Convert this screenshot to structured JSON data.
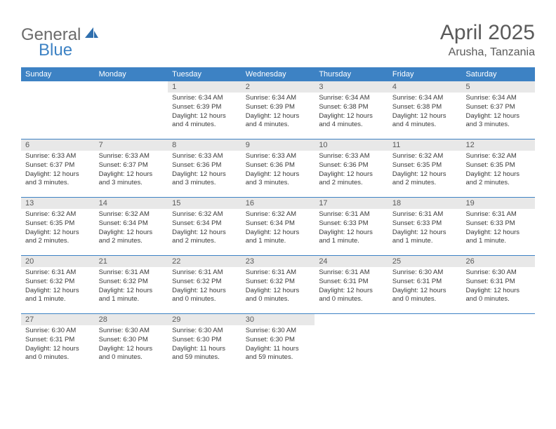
{
  "logo": {
    "general": "General",
    "blue": "Blue"
  },
  "title": "April 2025",
  "location": "Arusha, Tanzania",
  "colors": {
    "header_bg": "#3d82c4",
    "header_text": "#ffffff",
    "daynum_bg": "#e8e8e8",
    "daynum_text": "#5a5a5a",
    "body_text": "#3a3a3a",
    "divider": "#3d82c4",
    "title_text": "#5a5a5a",
    "logo_gray": "#6b6b6b",
    "logo_blue": "#3d82c4"
  },
  "weekdays": [
    "Sunday",
    "Monday",
    "Tuesday",
    "Wednesday",
    "Thursday",
    "Friday",
    "Saturday"
  ],
  "weeks": [
    [
      null,
      null,
      {
        "n": "1",
        "sr": "Sunrise: 6:34 AM",
        "ss": "Sunset: 6:39 PM",
        "dl": "Daylight: 12 hours and 4 minutes."
      },
      {
        "n": "2",
        "sr": "Sunrise: 6:34 AM",
        "ss": "Sunset: 6:39 PM",
        "dl": "Daylight: 12 hours and 4 minutes."
      },
      {
        "n": "3",
        "sr": "Sunrise: 6:34 AM",
        "ss": "Sunset: 6:38 PM",
        "dl": "Daylight: 12 hours and 4 minutes."
      },
      {
        "n": "4",
        "sr": "Sunrise: 6:34 AM",
        "ss": "Sunset: 6:38 PM",
        "dl": "Daylight: 12 hours and 4 minutes."
      },
      {
        "n": "5",
        "sr": "Sunrise: 6:34 AM",
        "ss": "Sunset: 6:37 PM",
        "dl": "Daylight: 12 hours and 3 minutes."
      }
    ],
    [
      {
        "n": "6",
        "sr": "Sunrise: 6:33 AM",
        "ss": "Sunset: 6:37 PM",
        "dl": "Daylight: 12 hours and 3 minutes."
      },
      {
        "n": "7",
        "sr": "Sunrise: 6:33 AM",
        "ss": "Sunset: 6:37 PM",
        "dl": "Daylight: 12 hours and 3 minutes."
      },
      {
        "n": "8",
        "sr": "Sunrise: 6:33 AM",
        "ss": "Sunset: 6:36 PM",
        "dl": "Daylight: 12 hours and 3 minutes."
      },
      {
        "n": "9",
        "sr": "Sunrise: 6:33 AM",
        "ss": "Sunset: 6:36 PM",
        "dl": "Daylight: 12 hours and 3 minutes."
      },
      {
        "n": "10",
        "sr": "Sunrise: 6:33 AM",
        "ss": "Sunset: 6:36 PM",
        "dl": "Daylight: 12 hours and 2 minutes."
      },
      {
        "n": "11",
        "sr": "Sunrise: 6:32 AM",
        "ss": "Sunset: 6:35 PM",
        "dl": "Daylight: 12 hours and 2 minutes."
      },
      {
        "n": "12",
        "sr": "Sunrise: 6:32 AM",
        "ss": "Sunset: 6:35 PM",
        "dl": "Daylight: 12 hours and 2 minutes."
      }
    ],
    [
      {
        "n": "13",
        "sr": "Sunrise: 6:32 AM",
        "ss": "Sunset: 6:35 PM",
        "dl": "Daylight: 12 hours and 2 minutes."
      },
      {
        "n": "14",
        "sr": "Sunrise: 6:32 AM",
        "ss": "Sunset: 6:34 PM",
        "dl": "Daylight: 12 hours and 2 minutes."
      },
      {
        "n": "15",
        "sr": "Sunrise: 6:32 AM",
        "ss": "Sunset: 6:34 PM",
        "dl": "Daylight: 12 hours and 2 minutes."
      },
      {
        "n": "16",
        "sr": "Sunrise: 6:32 AM",
        "ss": "Sunset: 6:34 PM",
        "dl": "Daylight: 12 hours and 1 minute."
      },
      {
        "n": "17",
        "sr": "Sunrise: 6:31 AM",
        "ss": "Sunset: 6:33 PM",
        "dl": "Daylight: 12 hours and 1 minute."
      },
      {
        "n": "18",
        "sr": "Sunrise: 6:31 AM",
        "ss": "Sunset: 6:33 PM",
        "dl": "Daylight: 12 hours and 1 minute."
      },
      {
        "n": "19",
        "sr": "Sunrise: 6:31 AM",
        "ss": "Sunset: 6:33 PM",
        "dl": "Daylight: 12 hours and 1 minute."
      }
    ],
    [
      {
        "n": "20",
        "sr": "Sunrise: 6:31 AM",
        "ss": "Sunset: 6:32 PM",
        "dl": "Daylight: 12 hours and 1 minute."
      },
      {
        "n": "21",
        "sr": "Sunrise: 6:31 AM",
        "ss": "Sunset: 6:32 PM",
        "dl": "Daylight: 12 hours and 1 minute."
      },
      {
        "n": "22",
        "sr": "Sunrise: 6:31 AM",
        "ss": "Sunset: 6:32 PM",
        "dl": "Daylight: 12 hours and 0 minutes."
      },
      {
        "n": "23",
        "sr": "Sunrise: 6:31 AM",
        "ss": "Sunset: 6:32 PM",
        "dl": "Daylight: 12 hours and 0 minutes."
      },
      {
        "n": "24",
        "sr": "Sunrise: 6:31 AM",
        "ss": "Sunset: 6:31 PM",
        "dl": "Daylight: 12 hours and 0 minutes."
      },
      {
        "n": "25",
        "sr": "Sunrise: 6:30 AM",
        "ss": "Sunset: 6:31 PM",
        "dl": "Daylight: 12 hours and 0 minutes."
      },
      {
        "n": "26",
        "sr": "Sunrise: 6:30 AM",
        "ss": "Sunset: 6:31 PM",
        "dl": "Daylight: 12 hours and 0 minutes."
      }
    ],
    [
      {
        "n": "27",
        "sr": "Sunrise: 6:30 AM",
        "ss": "Sunset: 6:31 PM",
        "dl": "Daylight: 12 hours and 0 minutes."
      },
      {
        "n": "28",
        "sr": "Sunrise: 6:30 AM",
        "ss": "Sunset: 6:30 PM",
        "dl": "Daylight: 12 hours and 0 minutes."
      },
      {
        "n": "29",
        "sr": "Sunrise: 6:30 AM",
        "ss": "Sunset: 6:30 PM",
        "dl": "Daylight: 11 hours and 59 minutes."
      },
      {
        "n": "30",
        "sr": "Sunrise: 6:30 AM",
        "ss": "Sunset: 6:30 PM",
        "dl": "Daylight: 11 hours and 59 minutes."
      },
      null,
      null,
      null
    ]
  ]
}
